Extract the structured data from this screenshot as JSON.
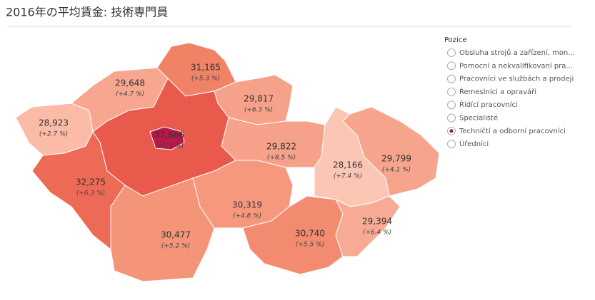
{
  "title": "2016年の平均賃金: 技術専門員",
  "regions": [
    {
      "value": "28,923",
      "change": "(+2.7 %)",
      "color": "#fbbba7"
    },
    {
      "value": "29,648",
      "change": "(+4.7 %)",
      "color": "#f7a68f"
    },
    {
      "value": "31,165",
      "change": "(+5.3 %)",
      "color": "#f08266"
    },
    {
      "value": "29,817",
      "change": "(+6.3 %)",
      "color": "#f6a28a"
    },
    {
      "value": "29,822",
      "change": "(+8.5 %)",
      "color": "#f6a28a"
    },
    {
      "color": "#ea5a4c"
    },
    {
      "value": "37,666",
      "change": "(+5.5 %)",
      "color": "#b8194a"
    },
    {
      "value": "32,275",
      "change": "(+6.3 %)",
      "color": "#ed6a57"
    },
    {
      "value": "30,477",
      "change": "(+5.2 %)",
      "color": "#f49479"
    },
    {
      "value": "30,319",
      "change": "(+4.8 %)",
      "color": "#f5987d"
    },
    {
      "value": "30,740",
      "change": "(+5.5 %)",
      "color": "#f38b70"
    },
    {
      "value": "28,166",
      "change": "(+7.4 %)",
      "color": "#fcc6b5"
    },
    {
      "value": "29,799",
      "change": "(+4.1 %)",
      "color": "#f6a48c"
    },
    {
      "value": "29,394",
      "change": "(+6.4 %)",
      "color": "#f8ab94"
    }
  ],
  "legend": {
    "title": "Pozice",
    "options": [
      "Obsluha strojů a zařízení, mon...",
      "Pomocní a nekvalifikovaní pra...",
      "Pracovníci ve službách a prodeji",
      "Řemeslníci a opraváři",
      "Řídící pracovníci",
      "Specialisté",
      "Techničtí a odborní pracovníci",
      "Úředníci"
    ],
    "selected": 6
  }
}
